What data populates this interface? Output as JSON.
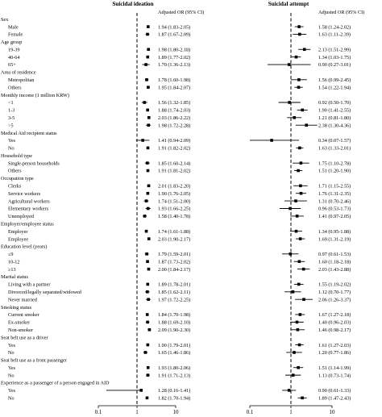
{
  "panels": [
    {
      "title": "Suicidal ideation",
      "ci_header": "Adjusted OR (95% CI)",
      "ticks": [
        {
          "value": 0.1,
          "label": "0.1"
        },
        {
          "value": 1,
          "label": "1"
        },
        {
          "value": 10,
          "label": "10"
        }
      ]
    },
    {
      "title": "Suicidal attempt",
      "ci_header": "Adjusted OR (95% CI)",
      "ticks": [
        {
          "value": 0.1,
          "label": "0.1"
        },
        {
          "value": 1,
          "label": "1"
        },
        {
          "value": 10,
          "label": "10"
        }
      ]
    }
  ],
  "chart_data": {
    "type": "forest",
    "x_scale": "log",
    "xlim": [
      0.1,
      10
    ],
    "reference_line": 1,
    "panels": [
      "Suicidal ideation",
      "Suicidal attempt"
    ],
    "rows": [
      {
        "kind": "header",
        "label": "Sex"
      },
      {
        "kind": "item",
        "label": "Male",
        "ideation": {
          "or": 1.94,
          "lo": 1.83,
          "hi": 2.05,
          "text": "1.94 (1.83-2.05)"
        },
        "attempt": {
          "or": 1.58,
          "lo": 1.24,
          "hi": 2.02,
          "text": "1.58 (1.24-2.02)"
        }
      },
      {
        "kind": "item",
        "label": "Female",
        "ideation": {
          "or": 1.87,
          "lo": 1.67,
          "hi": 2.09,
          "text": "1.87 (1.67-2.09)"
        },
        "attempt": {
          "or": 1.63,
          "lo": 1.11,
          "hi": 2.39,
          "text": "1.63 (1.11-2.39)"
        }
      },
      {
        "kind": "header",
        "label": "Age group"
      },
      {
        "kind": "item",
        "label": "19-39",
        "ideation": {
          "or": 1.98,
          "lo": 1.8,
          "hi": 2.18,
          "text": "1.98 (1.80-2.18)"
        },
        "attempt": {
          "or": 2.13,
          "lo": 1.51,
          "hi": 2.99,
          "text": "2.13 (1.51-2.99)"
        }
      },
      {
        "kind": "item",
        "label": "40-64",
        "ideation": {
          "or": 1.89,
          "lo": 1.77,
          "hi": 2.02,
          "text": "1.89 (1.77-2.02)"
        },
        "attempt": {
          "or": 1.34,
          "lo": 1.03,
          "hi": 1.75,
          "text": "1.34 (1.03-1.75)"
        }
      },
      {
        "kind": "item",
        "label": "65+",
        "ideation": {
          "or": 1.7,
          "lo": 1.36,
          "hi": 2.13,
          "text": "1.70 (1.36-2.13)"
        },
        "attempt": {
          "or": 0.9,
          "lo": 0.27,
          "hi": 3.01,
          "text": "0.90 (0.27-3.01)"
        }
      },
      {
        "kind": "header",
        "label": "Area of residence"
      },
      {
        "kind": "item",
        "label": "Metropolitan",
        "ideation": {
          "or": 1.78,
          "lo": 1.6,
          "hi": 1.98,
          "text": "1.78 (1.60-1.98)"
        },
        "attempt": {
          "or": 1.56,
          "lo": 0.99,
          "hi": 2.45,
          "text": "1.56 (0.99-2.45)"
        }
      },
      {
        "kind": "item",
        "label": "Others",
        "ideation": {
          "or": 1.95,
          "lo": 1.84,
          "hi": 2.07,
          "text": "1.95 (1.84-2.07)"
        },
        "attempt": {
          "or": 1.54,
          "lo": 1.22,
          "hi": 1.94,
          "text": "1.54 (1.22-1.94)"
        }
      },
      {
        "kind": "header",
        "label": "Monthly income (1 million KRW)"
      },
      {
        "kind": "item",
        "label": "<1",
        "ideation": {
          "or": 1.56,
          "lo": 1.32,
          "hi": 1.85,
          "text": "1.56 (1.32-1.85)"
        },
        "attempt": {
          "or": 0.92,
          "lo": 0.5,
          "hi": 1.7,
          "text": "0.92 (0.50-1.70)"
        }
      },
      {
        "kind": "item",
        "label": "1-3",
        "ideation": {
          "or": 1.88,
          "lo": 1.74,
          "hi": 2.03,
          "text": "1.88 (1.74-2.03)"
        },
        "attempt": {
          "or": 1.9,
          "lo": 1.41,
          "hi": 2.55,
          "text": "1.90 (1.41-2.55)"
        }
      },
      {
        "kind": "item",
        "label": "3-5",
        "ideation": {
          "or": 2.03,
          "lo": 1.86,
          "hi": 2.22,
          "text": "2.03 (1.86-2.22)"
        },
        "attempt": {
          "or": 1.21,
          "lo": 0.81,
          "hi": 1.8,
          "text": "1.21 (0.81-1.80)"
        }
      },
      {
        "kind": "item",
        "label": ">5",
        "ideation": {
          "or": 1.98,
          "lo": 1.72,
          "hi": 2.28,
          "text": "1.98 (1.72-2.28)"
        },
        "attempt": {
          "or": 2.38,
          "lo": 1.3,
          "hi": 4.36,
          "text": "2.38 (1.30-4.36)"
        }
      },
      {
        "kind": "header",
        "label": "Medical Aid recipient status"
      },
      {
        "kind": "item",
        "label": "Yes",
        "ideation": {
          "or": 1.41,
          "lo": 0.94,
          "hi": 2.09,
          "text": "1.41 (0.94-2.09)"
        },
        "attempt": {
          "or": 0.34,
          "lo": 0.07,
          "hi": 1.57,
          "text": "0.34 (0.07-1.57)"
        }
      },
      {
        "kind": "item",
        "label": "No",
        "ideation": {
          "or": 1.91,
          "lo": 1.82,
          "hi": 2.02,
          "text": "1.91 (1.82-2.02)"
        },
        "attempt": {
          "or": 1.63,
          "lo": 1.33,
          "hi": 2.01,
          "text": "1.63 (1.33-2.01)"
        }
      },
      {
        "kind": "header",
        "label": "Household type"
      },
      {
        "kind": "item",
        "label": "Single-person households",
        "ideation": {
          "or": 1.85,
          "lo": 1.6,
          "hi": 2.14,
          "text": "1.85 (1.60-2.14)"
        },
        "attempt": {
          "or": 1.75,
          "lo": 1.1,
          "hi": 2.78,
          "text": "1.75 (1.10-2.78)"
        }
      },
      {
        "kind": "item",
        "label": "Others",
        "ideation": {
          "or": 1.91,
          "lo": 1.81,
          "hi": 2.02,
          "text": "1.91 (1.81-2.02)"
        },
        "attempt": {
          "or": 1.51,
          "lo": 1.2,
          "hi": 1.9,
          "text": "1.51 (1.20-1.90)"
        }
      },
      {
        "kind": "header",
        "label": "Occupation type"
      },
      {
        "kind": "item",
        "label": "Clerks",
        "ideation": {
          "or": 2.01,
          "lo": 1.83,
          "hi": 2.2,
          "text": "2.01 (1.83-2.20)"
        },
        "attempt": {
          "or": 1.71,
          "lo": 1.15,
          "hi": 2.55,
          "text": "1.71 (1.15-2.55)"
        }
      },
      {
        "kind": "item",
        "label": "Service workers",
        "ideation": {
          "or": 1.9,
          "lo": 1.76,
          "hi": 2.05,
          "text": "1.90 (1.76-2.05)"
        },
        "attempt": {
          "or": 1.76,
          "lo": 1.31,
          "hi": 2.35,
          "text": "1.76 (1.31-2.35)"
        }
      },
      {
        "kind": "item",
        "label": "Agricultural workers",
        "ideation": {
          "or": 1.74,
          "lo": 1.51,
          "hi": 2.0,
          "text": "1.74 (1.51-2.00)"
        },
        "attempt": {
          "or": 1.31,
          "lo": 0.7,
          "hi": 2.46,
          "text": "1.31 (0.70-2.46)"
        }
      },
      {
        "kind": "item",
        "label": "Elementary workers",
        "ideation": {
          "or": 1.93,
          "lo": 1.66,
          "hi": 2.25,
          "text": "1.93 (1.66-2.25)"
        },
        "attempt": {
          "or": 0.96,
          "lo": 0.53,
          "hi": 1.73,
          "text": "0.96 (0.53-1.73)"
        }
      },
      {
        "kind": "item",
        "label": "Unemployed",
        "ideation": {
          "or": 1.58,
          "lo": 1.4,
          "hi": 1.78,
          "text": "1.58 (1.40-1.78)"
        },
        "attempt": {
          "or": 1.41,
          "lo": 0.97,
          "hi": 2.05,
          "text": "1.41 (0.97-2.05)"
        }
      },
      {
        "kind": "header",
        "label": "Employer/employee status"
      },
      {
        "kind": "item",
        "label": "Employer",
        "ideation": {
          "or": 1.74,
          "lo": 1.61,
          "hi": 1.88,
          "text": "1.74 (1.61-1.88)"
        },
        "attempt": {
          "or": 1.34,
          "lo": 0.95,
          "hi": 1.88,
          "text": "1.34 (0.95-1.88)"
        }
      },
      {
        "kind": "item",
        "label": "Employee",
        "ideation": {
          "or": 2.03,
          "lo": 1.9,
          "hi": 2.17,
          "text": "2.03 (1.90-2.17)"
        },
        "attempt": {
          "or": 1.69,
          "lo": 1.31,
          "hi": 2.19,
          "text": "1.69 (1.31-2.19)"
        }
      },
      {
        "kind": "header",
        "label": "Education level (years)"
      },
      {
        "kind": "item",
        "label": "≤9",
        "ideation": {
          "or": 1.79,
          "lo": 1.59,
          "hi": 2.01,
          "text": "1.79 (1.59-2.01)"
        },
        "attempt": {
          "or": 0.97,
          "lo": 0.61,
          "hi": 1.53,
          "text": "0.97 (0.61-1.53)"
        }
      },
      {
        "kind": "item",
        "label": "10-12",
        "ideation": {
          "or": 1.87,
          "lo": 1.73,
          "hi": 2.02,
          "text": "1.87 (1.73-2.02)"
        },
        "attempt": {
          "or": 1.6,
          "lo": 1.18,
          "hi": 2.18,
          "text": "1.60 (1.18-2.18)"
        }
      },
      {
        "kind": "item",
        "label": "≥13",
        "ideation": {
          "or": 2.0,
          "lo": 1.84,
          "hi": 2.17,
          "text": "2.00 (1.84-2.17)"
        },
        "attempt": {
          "or": 2.03,
          "lo": 1.43,
          "hi": 2.88,
          "text": "2.03 (1.43-2.88)"
        }
      },
      {
        "kind": "header",
        "label": "Marital status"
      },
      {
        "kind": "item",
        "label": "Living with a partner",
        "ideation": {
          "or": 1.89,
          "lo": 1.78,
          "hi": 2.01,
          "text": "1.89 (1.78-2.01)"
        },
        "attempt": {
          "or": 1.55,
          "lo": 1.19,
          "hi": 2.02,
          "text": "1.55 (1.19-2.02)"
        }
      },
      {
        "kind": "item",
        "label": "Divorced/legally separated/widowed",
        "ideation": {
          "or": 1.85,
          "lo": 1.62,
          "hi": 2.11,
          "text": "1.85 (1.62-2.11)"
        },
        "attempt": {
          "or": 1.12,
          "lo": 0.7,
          "hi": 1.77,
          "text": "1.12 (0.70-1.77)"
        }
      },
      {
        "kind": "item",
        "label": "Never married",
        "ideation": {
          "or": 1.97,
          "lo": 1.72,
          "hi": 2.25,
          "text": "1.97 (1.72-2.25)"
        },
        "attempt": {
          "or": 2.06,
          "lo": 1.26,
          "hi": 3.37,
          "text": "2.06 (1.26-3.37)"
        }
      },
      {
        "kind": "header",
        "label": "Smoking status"
      },
      {
        "kind": "item",
        "label": "Current smoker",
        "ideation": {
          "or": 1.84,
          "lo": 1.7,
          "hi": 1.98,
          "text": "1.84 (1.70-1.98)"
        },
        "attempt": {
          "or": 1.67,
          "lo": 1.27,
          "hi": 2.18,
          "text": "1.67 (1.27-2.18)"
        }
      },
      {
        "kind": "item",
        "label": "Ex-smoker",
        "ideation": {
          "or": 1.88,
          "lo": 1.69,
          "hi": 2.1,
          "text": "1.88 (1.69-2.10)"
        },
        "attempt": {
          "or": 1.4,
          "lo": 0.96,
          "hi": 2.03,
          "text": "1.40 (0.96-2.03)"
        }
      },
      {
        "kind": "item",
        "label": "Non-smoker",
        "ideation": {
          "or": 2.09,
          "lo": 1.9,
          "hi": 2.3,
          "text": "2.09 (1.90-2.30)"
        },
        "attempt": {
          "or": 1.46,
          "lo": 0.98,
          "hi": 2.17,
          "text": "1.46 (0.98-2.17)"
        }
      },
      {
        "kind": "header",
        "label": "Seat belt use as a driver"
      },
      {
        "kind": "item",
        "label": "Yes",
        "ideation": {
          "or": 1.9,
          "lo": 1.79,
          "hi": 2.01,
          "text": "1.90 (1.79-2.01)"
        },
        "attempt": {
          "or": 1.61,
          "lo": 1.27,
          "hi": 2.03,
          "text": "1.61 (1.27-2.03)"
        }
      },
      {
        "kind": "item",
        "label": "No",
        "ideation": {
          "or": 1.65,
          "lo": 1.46,
          "hi": 1.86,
          "text": "1.65 (1.46-1.86)"
        },
        "attempt": {
          "or": 1.2,
          "lo": 0.77,
          "hi": 1.86,
          "text": "1.20 (0.77-1.86)"
        }
      },
      {
        "kind": "header",
        "label": "Seat belt use as a front passenger"
      },
      {
        "kind": "item",
        "label": "Yes",
        "ideation": {
          "or": 1.93,
          "lo": 1.8,
          "hi": 2.06,
          "text": "1.93 (1.80-2.06)"
        },
        "attempt": {
          "or": 1.51,
          "lo": 1.14,
          "hi": 1.99,
          "text": "1.51 (1.14-1.99)"
        }
      },
      {
        "kind": "item",
        "label": "No",
        "ideation": {
          "or": 1.91,
          "lo": 1.71,
          "hi": 2.13,
          "text": "1.91 (1.71-2.13)"
        },
        "attempt": {
          "or": 1.13,
          "lo": 0.73,
          "hi": 1.74,
          "text": "1.13 (0.73-1.74)"
        }
      },
      {
        "kind": "header",
        "label": "Experience as a passenger of a person engaged in AID"
      },
      {
        "kind": "item",
        "label": "Yes",
        "ideation": {
          "or": 1.28,
          "lo": 0.16,
          "hi": 1.41,
          "text": "1.28 (0.16-1.41)"
        },
        "attempt": {
          "or": 0.9,
          "lo": 0.61,
          "hi": 1.33,
          "text": "0.90 (0.61-1.33)"
        }
      },
      {
        "kind": "item",
        "label": "No",
        "ideation": {
          "or": 1.82,
          "lo": 1.7,
          "hi": 1.94,
          "text": "1.82 (1.70-1.94)"
        },
        "attempt": {
          "or": 1.89,
          "lo": 1.47,
          "hi": 2.43,
          "text": "1.89 (1.47-2.43)"
        }
      }
    ]
  }
}
